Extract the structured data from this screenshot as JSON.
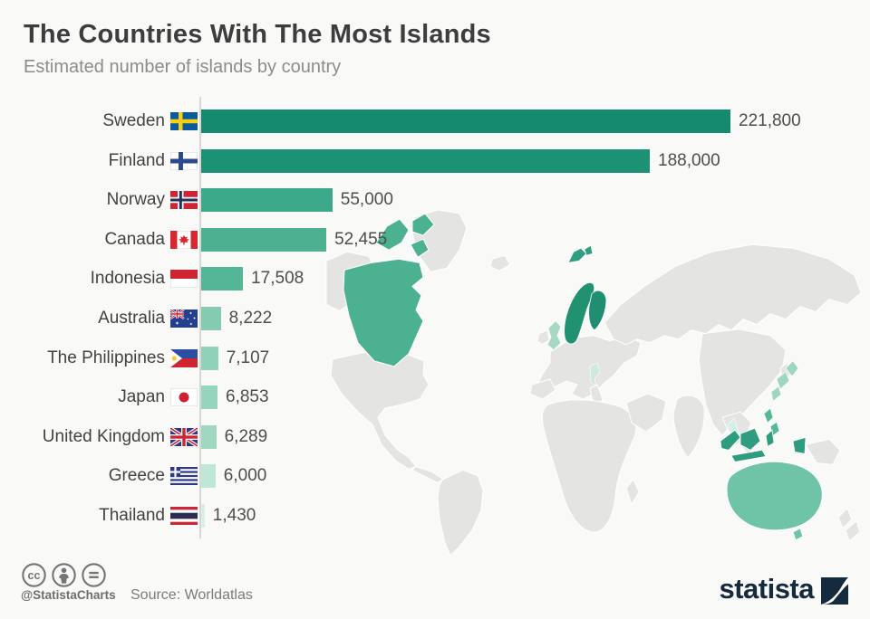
{
  "header": {
    "title": "The Countries With The Most Islands",
    "subtitle": "Estimated number of islands by country"
  },
  "chart_data": {
    "type": "bar",
    "orientation": "horizontal",
    "title": "The Countries With The Most Islands",
    "subtitle": "Estimated number of islands by country",
    "categories": [
      "Sweden",
      "Finland",
      "Norway",
      "Canada",
      "Indonesia",
      "Australia",
      "The Philippines",
      "Japan",
      "United Kingdom",
      "Greece",
      "Thailand"
    ],
    "values": [
      221800,
      188000,
      55000,
      52455,
      17508,
      8222,
      7107,
      6853,
      6289,
      6000,
      1430
    ],
    "value_labels": [
      "221,800",
      "188,000",
      "55,000",
      "52,455",
      "17,508",
      "8,222",
      "7,107",
      "6,853",
      "6,289",
      "6,000",
      "1,430"
    ],
    "flag_ids": [
      "sweden",
      "finland",
      "norway",
      "canada",
      "indonesia",
      "australia",
      "philippines",
      "japan",
      "uk",
      "greece",
      "thailand"
    ],
    "bar_colors": [
      "#158a6e",
      "#1d9174",
      "#3ca98b",
      "#4bb191",
      "#55b697",
      "#84cbb1",
      "#90d1b9",
      "#97d4bd",
      "#9fd7c1",
      "#c0e6d7",
      "#d8f0e8"
    ],
    "x_axis_max": 221800,
    "grid": false,
    "legend": false,
    "xlabel": "",
    "ylabel": ""
  },
  "map": {
    "colors": {
      "land": "#e4e4e3",
      "canada": "#4bb191",
      "scandinavia": "#21926f",
      "finland": "#1f8e71",
      "svalbard": "#2f9d80",
      "uk": "#a6d9c3",
      "greece": "#cfeadd",
      "japan": "#9ed7c0",
      "thailand": "#d5efe5",
      "philippines": "#57b898",
      "indonesia": "#2f9c7f",
      "australia": "#6fc4a8"
    }
  },
  "footer": {
    "handle": "@StatistaCharts",
    "source": "Source: Worldatlas",
    "license_icons": [
      "cc-icon",
      "attribution-icon",
      "no-derivatives-icon"
    ]
  },
  "brand": {
    "name": "statista",
    "color": "#162a3d"
  }
}
